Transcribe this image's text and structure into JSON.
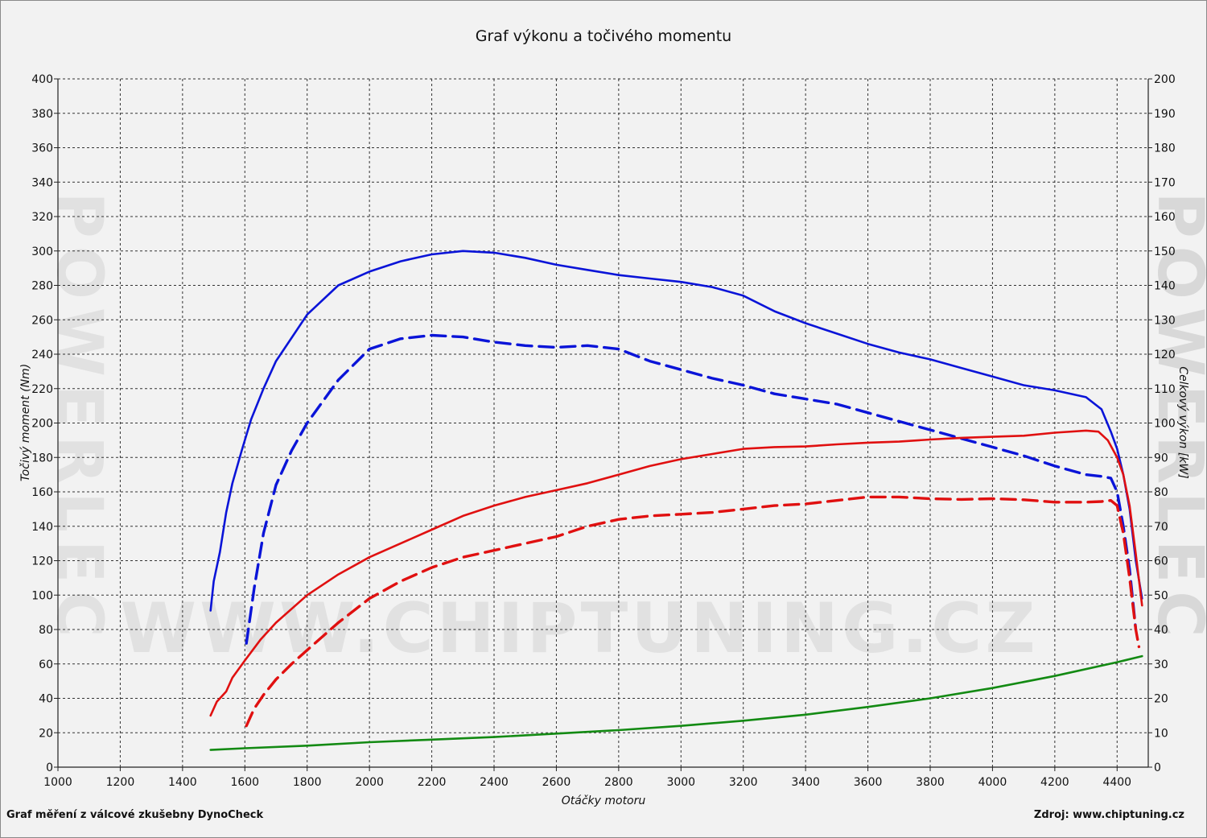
{
  "title": "Graf výkonu a točivého momentu",
  "footer": {
    "left": "Graf měření z válcové zkušebny DynoCheck",
    "right": "Zdroj: www.chiptuning.cz"
  },
  "watermark": {
    "url": "WWW.CHIPTUNING.CZ",
    "vertical": "POWERLEC"
  },
  "chart_data": {
    "type": "line",
    "title": "Graf výkonu a točivého momentu",
    "xlabel": "Otáčky motoru",
    "ylabel_left": "Točivý moment (Nm)",
    "ylabel_right": "Celkový výkon [kW]",
    "xlim": [
      1000,
      4500
    ],
    "ylim_left": [
      0,
      400
    ],
    "ylim_right": [
      0,
      200
    ],
    "x_ticks": [
      1000,
      1200,
      1400,
      1600,
      1800,
      2000,
      2200,
      2400,
      2600,
      2800,
      3000,
      3200,
      3400,
      3600,
      3800,
      4000,
      4200,
      4400
    ],
    "y_ticks_left": [
      0,
      20,
      40,
      60,
      80,
      100,
      120,
      140,
      160,
      180,
      200,
      220,
      240,
      260,
      280,
      300,
      320,
      340,
      360,
      380,
      400
    ],
    "y_ticks_right": [
      0,
      10,
      20,
      30,
      40,
      50,
      60,
      70,
      80,
      90,
      100,
      110,
      120,
      130,
      140,
      150,
      160,
      170,
      180,
      190,
      200
    ],
    "grid": true,
    "series": [
      {
        "axis": "left",
        "color": "#0a14d8",
        "dash": false,
        "x": [
          1490,
          1500,
          1520,
          1540,
          1560,
          1590,
          1620,
          1660,
          1700,
          1800,
          1900,
          2000,
          2100,
          2200,
          2300,
          2400,
          2500,
          2600,
          2700,
          2800,
          2900,
          3000,
          3100,
          3200,
          3300,
          3400,
          3500,
          3600,
          3700,
          3800,
          3900,
          4000,
          4100,
          4200,
          4300,
          4350,
          4380,
          4400,
          4420,
          4440,
          4460,
          4480
        ],
        "y": [
          91,
          108,
          125,
          148,
          165,
          184,
          202,
          220,
          236,
          263,
          280,
          288,
          294,
          298,
          300,
          299,
          296,
          292,
          289,
          286,
          284,
          282,
          279,
          274,
          265,
          258,
          252,
          246,
          241,
          237,
          232,
          227,
          222,
          219,
          215,
          208,
          195,
          185,
          170,
          150,
          120,
          98
        ]
      },
      {
        "axis": "left",
        "color": "#0a14d8",
        "dash": true,
        "x": [
          1605,
          1630,
          1660,
          1700,
          1750,
          1800,
          1900,
          2000,
          2100,
          2200,
          2300,
          2400,
          2500,
          2600,
          2700,
          2800,
          2900,
          3000,
          3100,
          3200,
          3300,
          3400,
          3500,
          3600,
          3700,
          3800,
          3900,
          4000,
          4100,
          4200,
          4300,
          4350,
          4380,
          4400,
          4420,
          4440,
          4460
        ],
        "y": [
          72,
          104,
          136,
          164,
          184,
          200,
          225,
          243,
          249,
          251,
          250,
          247,
          245,
          244,
          245,
          243,
          236,
          231,
          226,
          222,
          217,
          214,
          211,
          206,
          201,
          196,
          191,
          186,
          181,
          175,
          170,
          169,
          168,
          160,
          140,
          115,
          80
        ]
      },
      {
        "axis": "right",
        "color": "#e01010",
        "dash": false,
        "x": [
          1490,
          1510,
          1540,
          1560,
          1600,
          1650,
          1700,
          1800,
          1900,
          2000,
          2100,
          2200,
          2300,
          2400,
          2500,
          2600,
          2700,
          2800,
          2900,
          3000,
          3100,
          3200,
          3300,
          3400,
          3500,
          3600,
          3700,
          3800,
          3900,
          4000,
          4100,
          4200,
          4300,
          4340,
          4370,
          4400,
          4420,
          4440,
          4460,
          4480
        ],
        "y": [
          15,
          19,
          22,
          26,
          31,
          37,
          42,
          50,
          56,
          61,
          65,
          69,
          73,
          76,
          78.5,
          80.5,
          82.5,
          85,
          87.5,
          89.5,
          91,
          92.5,
          93,
          93.2,
          93.8,
          94.3,
          94.6,
          95.2,
          95.7,
          96,
          96.3,
          97.2,
          97.8,
          97.5,
          95,
          90,
          85,
          76,
          62,
          47
        ]
      },
      {
        "axis": "right",
        "color": "#e01010",
        "dash": true,
        "x": [
          1605,
          1630,
          1660,
          1700,
          1750,
          1800,
          1900,
          2000,
          2100,
          2200,
          2300,
          2400,
          2500,
          2600,
          2700,
          2800,
          2900,
          3000,
          3100,
          3200,
          3300,
          3400,
          3500,
          3600,
          3700,
          3800,
          3900,
          4000,
          4100,
          4200,
          4300,
          4350,
          4380,
          4400,
          4420,
          4440,
          4460,
          4470
        ],
        "y": [
          12,
          17,
          21,
          25.5,
          30,
          34,
          42,
          49,
          54,
          58,
          61,
          63,
          65,
          67,
          70,
          72,
          73,
          73.5,
          74,
          75,
          76,
          76.5,
          77.5,
          78.5,
          78.5,
          78,
          77.8,
          78,
          77.7,
          77,
          77,
          77.2,
          77.5,
          76,
          68,
          55,
          40,
          35
        ]
      },
      {
        "axis": "left",
        "color": "#138a13",
        "dash": false,
        "x": [
          1490,
          1600,
          1800,
          2000,
          2200,
          2400,
          2600,
          2800,
          3000,
          3200,
          3400,
          3600,
          3800,
          4000,
          4200,
          4400,
          4480
        ],
        "y": [
          10,
          11,
          12.5,
          14.5,
          16,
          17.5,
          19.5,
          21.5,
          24,
          27,
          30.5,
          35,
          40,
          46,
          53,
          61,
          64.5
        ]
      }
    ]
  }
}
